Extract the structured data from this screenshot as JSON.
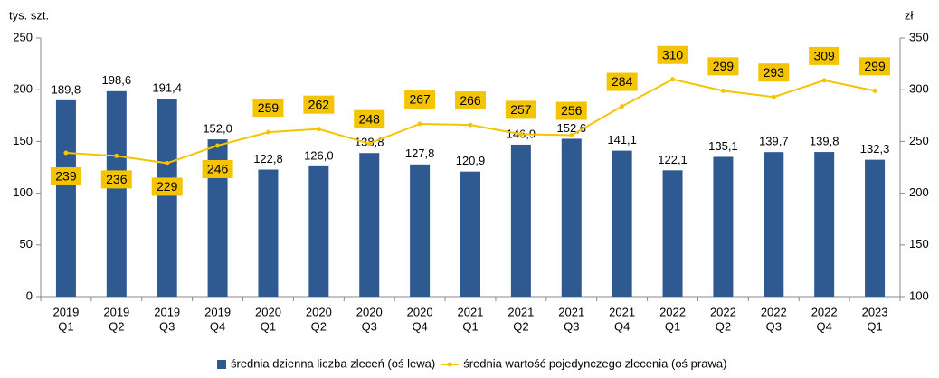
{
  "chart_data": {
    "type": "bar-line",
    "y_label": "tys. szt.",
    "y2_label": "zł",
    "categories": [
      [
        "2019",
        "Q1"
      ],
      [
        "2019",
        "Q2"
      ],
      [
        "2019",
        "Q3"
      ],
      [
        "2019",
        "Q4"
      ],
      [
        "2020",
        "Q1"
      ],
      [
        "2020",
        "Q2"
      ],
      [
        "2020",
        "Q3"
      ],
      [
        "2020",
        "Q4"
      ],
      [
        "2021",
        "Q1"
      ],
      [
        "2021",
        "Q2"
      ],
      [
        "2021",
        "Q3"
      ],
      [
        "2021",
        "Q4"
      ],
      [
        "2022",
        "Q1"
      ],
      [
        "2022",
        "Q2"
      ],
      [
        "2022",
        "Q3"
      ],
      [
        "2022",
        "Q4"
      ],
      [
        "2023",
        "Q1"
      ]
    ],
    "series": [
      {
        "name": "średnia dzienna liczba zleceń (oś lewa)",
        "type": "bar",
        "color": "#2e5a91",
        "values": [
          189.8,
          198.6,
          191.4,
          152.0,
          122.8,
          126.0,
          138.8,
          127.8,
          120.9,
          146.9,
          152.6,
          141.1,
          122.1,
          135.1,
          139.7,
          139.8,
          132.3
        ],
        "value_labels": [
          "189,8",
          "198,6",
          "191,4",
          "152,0",
          "122,8",
          "126,0",
          "138,8",
          "127,8",
          "120,9",
          "146,9",
          "152,6",
          "141,1",
          "122,1",
          "135,1",
          "139,7",
          "139,8",
          "132,3"
        ]
      },
      {
        "name": "średnia wartość pojedynczego zlecenia (oś prawa)",
        "type": "line",
        "axis": "y2",
        "color": "#f5c400",
        "values": [
          239,
          236,
          229,
          246,
          259,
          262,
          248,
          267,
          266,
          257,
          256,
          284,
          310,
          299,
          293,
          309,
          299
        ]
      }
    ],
    "ylim": [
      0,
      250
    ],
    "yticks": [
      0,
      50,
      100,
      150,
      200,
      250
    ],
    "y2lim": [
      100,
      350
    ],
    "y2ticks": [
      100,
      150,
      200,
      250,
      300,
      350
    ],
    "grid": false,
    "legend": "bottom"
  }
}
